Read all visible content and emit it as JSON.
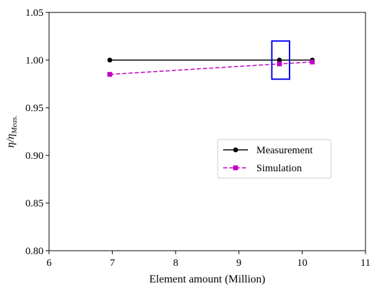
{
  "chart_data": {
    "type": "line",
    "xlabel": "Element amount (Million)",
    "ylabel_main": "η/η",
    "ylabel_sub": "Meas.",
    "xlim": [
      6,
      11
    ],
    "ylim": [
      0.8,
      1.05
    ],
    "xticks": [
      6,
      7,
      8,
      9,
      10,
      11
    ],
    "yticks": [
      0.8,
      0.85,
      0.9,
      0.95,
      1.0,
      1.05
    ],
    "xtick_labels": [
      "6",
      "7",
      "8",
      "9",
      "10",
      "11"
    ],
    "ytick_labels": [
      "0.80",
      "0.85",
      "0.90",
      "0.95",
      "1.00",
      "1.05"
    ],
    "grid": false,
    "legend_position": "center-right",
    "series": [
      {
        "name": "Measurement",
        "color": "#000000",
        "line_style": "solid",
        "marker": "circle",
        "x": [
          6.96,
          9.64,
          10.16
        ],
        "y": [
          1.0,
          1.0,
          1.0
        ]
      },
      {
        "name": "Simulation",
        "color": "#c000c0",
        "line_style": "dashed",
        "marker": "square",
        "x": [
          6.96,
          9.64,
          10.16
        ],
        "y": [
          0.985,
          0.996,
          0.998
        ]
      }
    ],
    "highlight_box": {
      "color": "#0000ee",
      "x": [
        9.52,
        9.8
      ],
      "y": [
        0.98,
        1.02
      ]
    }
  }
}
